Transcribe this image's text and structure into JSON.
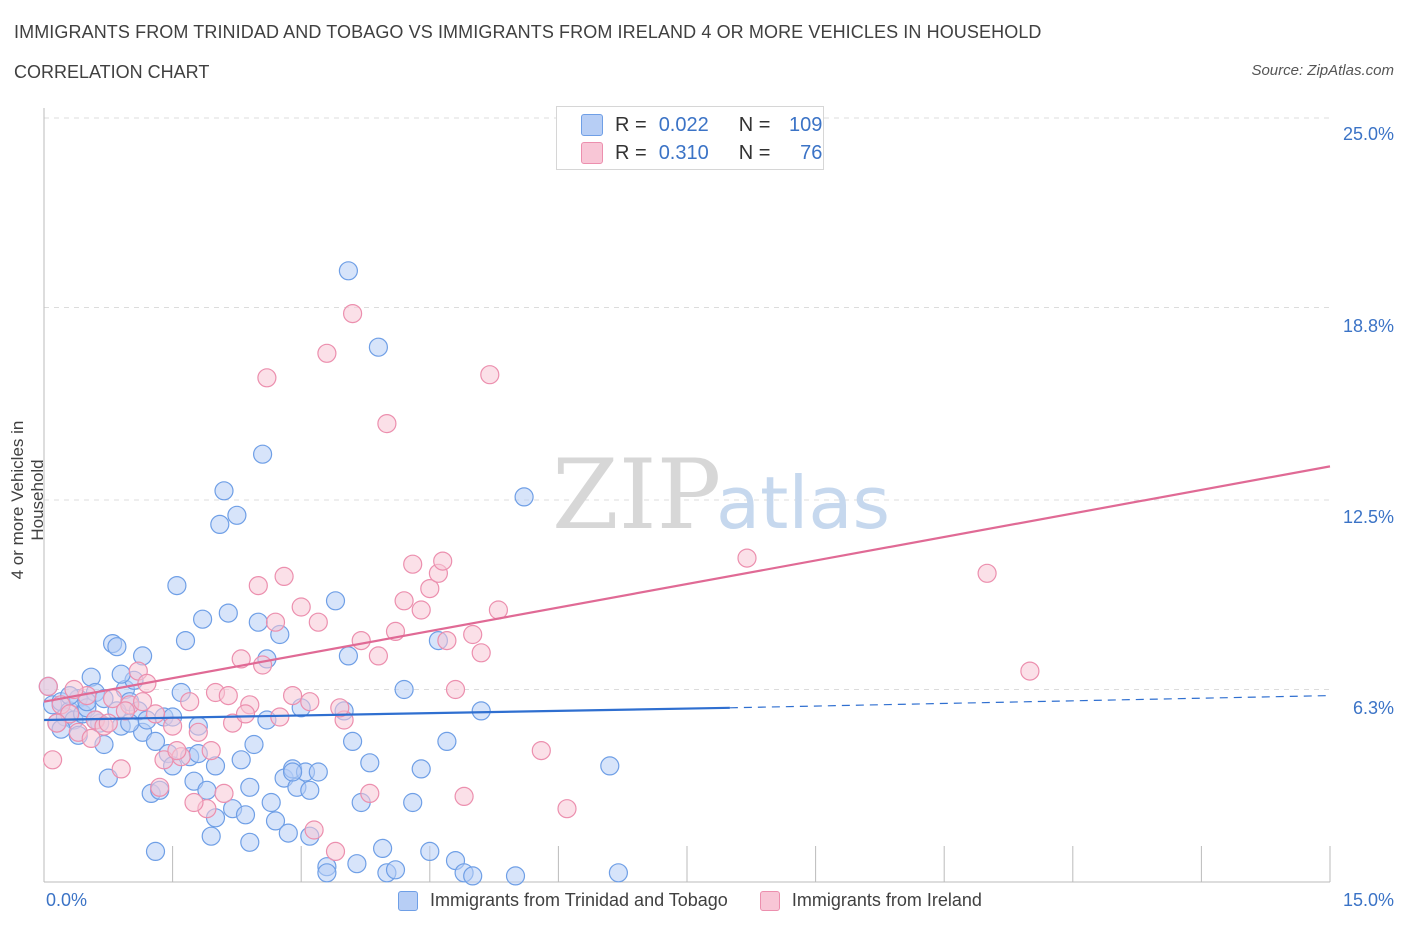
{
  "header": {
    "title": "IMMIGRANTS FROM TRINIDAD AND TOBAGO VS IMMIGRANTS FROM IRELAND 4 OR MORE VEHICLES IN HOUSEHOLD",
    "subtitle": "CORRELATION CHART",
    "source": "Source: ZipAtlas.com"
  },
  "watermark": {
    "zip": "ZIP",
    "atlas": "atlas"
  },
  "legend_top": {
    "rows": [
      {
        "r_label": "R =",
        "r_value": "0.022",
        "n_label": "N =",
        "n_value": "109"
      },
      {
        "r_label": "R =",
        "r_value": "0.310",
        "n_label": "N =",
        "n_value": "76"
      }
    ]
  },
  "chart_data": {
    "type": "scatter",
    "title": "IMMIGRANTS FROM TRINIDAD AND TOBAGO VS IMMIGRANTS FROM IRELAND 4 OR MORE VEHICLES IN HOUSEHOLD",
    "subtitle": "CORRELATION CHART",
    "xlabel": "",
    "ylabel": "4 or more Vehicles in Household",
    "xlim": [
      0,
      15
    ],
    "ylim": [
      0,
      25
    ],
    "x_tick_labels": [
      "0.0%",
      "15.0%"
    ],
    "y_tick_labels": [
      "6.3%",
      "12.5%",
      "18.8%",
      "25.0%"
    ],
    "y_tick_values": [
      6.3,
      12.5,
      18.8,
      25.0
    ],
    "grid": true,
    "legend_position": "bottom",
    "series": [
      {
        "name": "Immigrants from Trinidad and Tobago",
        "color": "#6f9fe6",
        "fill": "#b7cef5",
        "R": 0.022,
        "N": 109,
        "trend": {
          "x0": 0.0,
          "y0": 5.3,
          "x1": 8.0,
          "y1": 5.7,
          "dash_to_x": 15.0,
          "dash_to_y": 6.1
        },
        "points": [
          [
            0.05,
            6.4
          ],
          [
            0.1,
            5.8
          ],
          [
            0.15,
            5.2
          ],
          [
            0.2,
            5.9
          ],
          [
            0.25,
            5.4
          ],
          [
            0.3,
            5.6
          ],
          [
            0.35,
            5.3
          ],
          [
            0.4,
            6.0
          ],
          [
            0.45,
            5.5
          ],
          [
            0.5,
            5.7
          ],
          [
            0.55,
            6.7
          ],
          [
            0.6,
            6.2
          ],
          [
            0.65,
            5.2
          ],
          [
            0.7,
            4.5
          ],
          [
            0.75,
            3.4
          ],
          [
            0.8,
            7.8
          ],
          [
            0.85,
            7.7
          ],
          [
            0.9,
            5.1
          ],
          [
            0.95,
            6.3
          ],
          [
            1.0,
            5.9
          ],
          [
            1.05,
            6.6
          ],
          [
            1.1,
            5.6
          ],
          [
            1.15,
            4.9
          ],
          [
            1.2,
            5.3
          ],
          [
            1.25,
            2.9
          ],
          [
            1.3,
            4.6
          ],
          [
            1.35,
            3.0
          ],
          [
            1.4,
            5.4
          ],
          [
            1.45,
            4.2
          ],
          [
            1.5,
            3.8
          ],
          [
            1.55,
            9.7
          ],
          [
            1.6,
            6.2
          ],
          [
            1.65,
            7.9
          ],
          [
            1.7,
            4.1
          ],
          [
            1.75,
            3.3
          ],
          [
            1.8,
            4.2
          ],
          [
            1.85,
            8.6
          ],
          [
            1.9,
            3.0
          ],
          [
            1.95,
            1.5
          ],
          [
            2.0,
            3.8
          ],
          [
            2.05,
            11.7
          ],
          [
            2.1,
            12.8
          ],
          [
            2.15,
            8.8
          ],
          [
            2.2,
            2.4
          ],
          [
            2.25,
            12.0
          ],
          [
            2.3,
            4.0
          ],
          [
            2.35,
            2.2
          ],
          [
            2.4,
            3.1
          ],
          [
            2.45,
            4.5
          ],
          [
            2.5,
            8.5
          ],
          [
            2.55,
            14.0
          ],
          [
            2.6,
            7.3
          ],
          [
            2.65,
            2.6
          ],
          [
            2.7,
            2.0
          ],
          [
            2.75,
            8.1
          ],
          [
            2.8,
            3.4
          ],
          [
            2.85,
            1.6
          ],
          [
            2.9,
            3.7
          ],
          [
            2.95,
            3.1
          ],
          [
            3.0,
            5.7
          ],
          [
            3.05,
            3.6
          ],
          [
            3.1,
            3.0
          ],
          [
            3.2,
            3.6
          ],
          [
            3.3,
            0.5
          ],
          [
            3.4,
            9.2
          ],
          [
            3.5,
            5.6
          ],
          [
            3.55,
            7.4
          ],
          [
            3.6,
            4.6
          ],
          [
            3.7,
            2.6
          ],
          [
            3.8,
            3.9
          ],
          [
            3.9,
            17.5
          ],
          [
            3.95,
            1.1
          ],
          [
            4.0,
            0.3
          ],
          [
            4.1,
            0.4
          ],
          [
            4.2,
            6.3
          ],
          [
            4.3,
            2.6
          ],
          [
            4.4,
            3.7
          ],
          [
            4.5,
            1.0
          ],
          [
            4.6,
            7.9
          ],
          [
            4.7,
            4.6
          ],
          [
            4.8,
            0.7
          ],
          [
            4.9,
            0.3
          ],
          [
            5.0,
            0.2
          ],
          [
            5.1,
            5.6
          ],
          [
            5.5,
            0.2
          ],
          [
            5.6,
            12.6
          ],
          [
            6.6,
            3.8
          ],
          [
            6.7,
            0.3
          ],
          [
            3.55,
            20.0
          ],
          [
            1.3,
            1.0
          ],
          [
            0.4,
            4.8
          ],
          [
            0.6,
            5.3
          ],
          [
            0.9,
            6.8
          ],
          [
            1.15,
            7.4
          ],
          [
            1.5,
            5.4
          ],
          [
            1.8,
            5.1
          ],
          [
            2.0,
            2.1
          ],
          [
            2.4,
            1.3
          ],
          [
            2.6,
            5.3
          ],
          [
            2.9,
            3.6
          ],
          [
            3.1,
            1.5
          ],
          [
            3.3,
            0.3
          ],
          [
            3.65,
            0.6
          ],
          [
            0.2,
            5.0
          ],
          [
            0.3,
            6.1
          ],
          [
            0.5,
            5.9
          ],
          [
            0.7,
            6.0
          ],
          [
            0.85,
            5.6
          ],
          [
            1.0,
            5.2
          ]
        ]
      },
      {
        "name": "Immigrants from Ireland",
        "color": "#ec8fae",
        "fill": "#f8c6d6",
        "R": 0.31,
        "N": 76,
        "trend": {
          "x0": 0.0,
          "y0": 5.9,
          "x1": 15.0,
          "y1": 13.6
        },
        "points": [
          [
            0.05,
            6.4
          ],
          [
            0.1,
            4.0
          ],
          [
            0.2,
            5.8
          ],
          [
            0.3,
            5.5
          ],
          [
            0.4,
            4.9
          ],
          [
            0.5,
            6.1
          ],
          [
            0.6,
            5.3
          ],
          [
            0.7,
            5.1
          ],
          [
            0.8,
            6.0
          ],
          [
            0.9,
            3.7
          ],
          [
            1.0,
            5.8
          ],
          [
            1.1,
            6.9
          ],
          [
            1.2,
            6.5
          ],
          [
            1.3,
            5.5
          ],
          [
            1.4,
            4.0
          ],
          [
            1.5,
            5.1
          ],
          [
            1.6,
            4.1
          ],
          [
            1.7,
            5.9
          ],
          [
            1.8,
            4.9
          ],
          [
            1.9,
            2.4
          ],
          [
            2.0,
            6.2
          ],
          [
            2.1,
            2.9
          ],
          [
            2.2,
            5.2
          ],
          [
            2.3,
            7.3
          ],
          [
            2.4,
            5.8
          ],
          [
            2.5,
            9.7
          ],
          [
            2.55,
            7.1
          ],
          [
            2.6,
            16.5
          ],
          [
            2.7,
            8.5
          ],
          [
            2.8,
            10.0
          ],
          [
            2.9,
            6.1
          ],
          [
            3.0,
            9.0
          ],
          [
            3.1,
            5.9
          ],
          [
            3.2,
            8.5
          ],
          [
            3.3,
            17.3
          ],
          [
            3.4,
            1.0
          ],
          [
            3.5,
            5.3
          ],
          [
            3.6,
            18.6
          ],
          [
            3.7,
            7.9
          ],
          [
            3.8,
            2.9
          ],
          [
            3.9,
            7.4
          ],
          [
            4.0,
            15.0
          ],
          [
            4.1,
            8.2
          ],
          [
            4.2,
            9.2
          ],
          [
            4.3,
            10.4
          ],
          [
            4.4,
            8.9
          ],
          [
            4.5,
            9.6
          ],
          [
            4.6,
            10.1
          ],
          [
            4.65,
            10.5
          ],
          [
            4.7,
            7.9
          ],
          [
            4.8,
            6.3
          ],
          [
            4.9,
            2.8
          ],
          [
            5.0,
            8.1
          ],
          [
            5.1,
            7.5
          ],
          [
            5.2,
            16.6
          ],
          [
            5.3,
            8.9
          ],
          [
            5.8,
            4.3
          ],
          [
            6.1,
            2.4
          ],
          [
            8.2,
            10.6
          ],
          [
            11.0,
            10.1
          ],
          [
            11.5,
            6.9
          ],
          [
            0.15,
            5.2
          ],
          [
            0.35,
            6.3
          ],
          [
            0.55,
            4.7
          ],
          [
            0.75,
            5.2
          ],
          [
            0.95,
            5.6
          ],
          [
            1.15,
            5.9
          ],
          [
            1.35,
            3.1
          ],
          [
            1.55,
            4.3
          ],
          [
            1.75,
            2.6
          ],
          [
            1.95,
            4.3
          ],
          [
            2.15,
            6.1
          ],
          [
            2.35,
            5.5
          ],
          [
            2.75,
            5.4
          ],
          [
            3.15,
            1.7
          ],
          [
            3.45,
            5.7
          ]
        ]
      }
    ]
  },
  "axis": {
    "x_left_label": "0.0%",
    "x_right_label": "15.0%",
    "y_labels": [
      "25.0%",
      "18.8%",
      "12.5%",
      "6.3%"
    ],
    "y_title": "4 or more Vehicles in Household"
  },
  "bottom_legend": {
    "series_a": "Immigrants from Trinidad and Tobago",
    "series_b": "Immigrants from Ireland"
  }
}
